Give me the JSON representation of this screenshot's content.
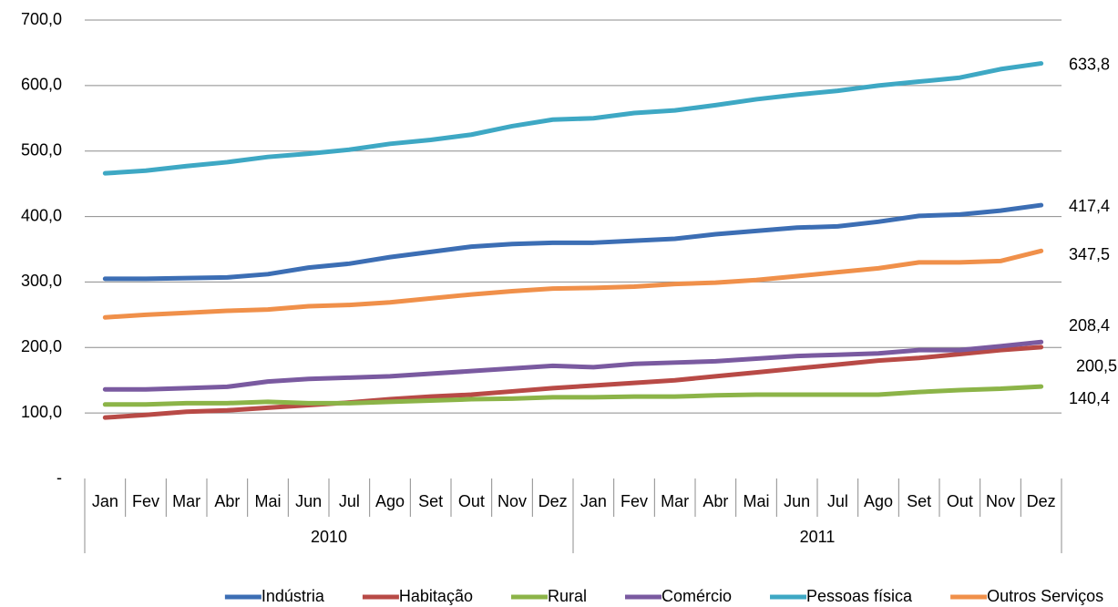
{
  "chart_data": {
    "type": "line",
    "categories": [
      "Jan",
      "Fev",
      "Mar",
      "Abr",
      "Mai",
      "Jun",
      "Jul",
      "Ago",
      "Set",
      "Out",
      "Nov",
      "Dez",
      "Jan",
      "Fev",
      "Mar",
      "Abr",
      "Mai",
      "Jun",
      "Jul",
      "Ago",
      "Set",
      "Out",
      "Nov",
      "Dez"
    ],
    "x_groups": [
      "2010",
      "2011"
    ],
    "ylim": [
      0,
      700
    ],
    "yticks": [
      {
        "value": 0,
        "label": "-"
      },
      {
        "value": 100,
        "label": "100,0"
      },
      {
        "value": 200,
        "label": "200,0"
      },
      {
        "value": 300,
        "label": "300,0"
      },
      {
        "value": 400,
        "label": "400,0"
      },
      {
        "value": 500,
        "label": "500,0"
      },
      {
        "value": 600,
        "label": "600,0"
      },
      {
        "value": 700,
        "label": "700,0"
      }
    ],
    "grid": true,
    "legend": "bottom",
    "series": [
      {
        "name": "Indústria",
        "color": "#3c6eb4",
        "values": [
          305,
          305,
          306,
          307,
          312,
          322,
          328,
          338,
          346,
          354,
          358,
          360,
          360,
          363,
          366,
          373,
          378,
          383,
          385,
          392,
          401,
          403,
          409,
          417.4
        ],
        "value_labels": [
          null,
          null,
          null,
          null,
          null,
          null,
          null,
          null,
          null,
          null,
          null,
          null,
          null,
          null,
          null,
          null,
          null,
          null,
          null,
          null,
          null,
          null,
          null,
          "417,4"
        ]
      },
      {
        "name": "Habitação",
        "color": "#b84a46",
        "values": [
          93,
          97,
          102,
          104,
          108,
          112,
          116,
          121,
          125,
          128,
          133,
          138,
          142,
          146,
          150,
          156,
          162,
          168,
          174,
          180,
          184,
          190,
          196,
          200.5
        ],
        "value_labels": [
          null,
          null,
          null,
          null,
          null,
          null,
          null,
          null,
          null,
          null,
          null,
          null,
          null,
          null,
          null,
          null,
          null,
          null,
          null,
          null,
          null,
          null,
          null,
          "200,5"
        ]
      },
      {
        "name": "Rural",
        "color": "#8cb448",
        "values": [
          113,
          113,
          115,
          115,
          117,
          115,
          115,
          117,
          119,
          121,
          122,
          124,
          124,
          125,
          125,
          127,
          128,
          128,
          128,
          128,
          132,
          135,
          137,
          140.4
        ],
        "value_labels": [
          null,
          null,
          null,
          null,
          null,
          null,
          null,
          null,
          null,
          null,
          null,
          null,
          null,
          null,
          null,
          null,
          null,
          null,
          null,
          null,
          null,
          null,
          null,
          "140,4"
        ]
      },
      {
        "name": "Comércio",
        "color": "#7a5aa0",
        "values": [
          136,
          136,
          138,
          140,
          148,
          152,
          154,
          156,
          160,
          164,
          168,
          172,
          170,
          175,
          177,
          179,
          183,
          187,
          189,
          191,
          196,
          196,
          202,
          208.4
        ],
        "value_labels": [
          null,
          null,
          null,
          null,
          null,
          null,
          null,
          null,
          null,
          null,
          null,
          null,
          null,
          null,
          null,
          null,
          null,
          null,
          null,
          null,
          null,
          null,
          null,
          "208,4"
        ]
      },
      {
        "name": "Pessoas física",
        "color": "#3ea8c4",
        "values": [
          466,
          470,
          477,
          483,
          491,
          496,
          502,
          511,
          517,
          525,
          538,
          548,
          550,
          558,
          562,
          570,
          579,
          586,
          592,
          600,
          606,
          612,
          625,
          633.8
        ],
        "value_labels": [
          null,
          null,
          null,
          null,
          null,
          null,
          null,
          null,
          null,
          null,
          null,
          null,
          null,
          null,
          null,
          null,
          null,
          null,
          null,
          null,
          null,
          null,
          null,
          "633,8"
        ]
      },
      {
        "name": "Outros Serviços",
        "color": "#f0904a",
        "values": [
          246,
          250,
          253,
          256,
          258,
          263,
          265,
          269,
          275,
          281,
          286,
          290,
          291,
          293,
          297,
          299,
          303,
          309,
          315,
          321,
          330,
          330,
          332,
          347.5
        ],
        "value_labels": [
          null,
          null,
          null,
          null,
          null,
          null,
          null,
          null,
          null,
          null,
          null,
          null,
          null,
          null,
          null,
          null,
          null,
          null,
          null,
          null,
          null,
          null,
          null,
          "347,5"
        ]
      }
    ]
  }
}
